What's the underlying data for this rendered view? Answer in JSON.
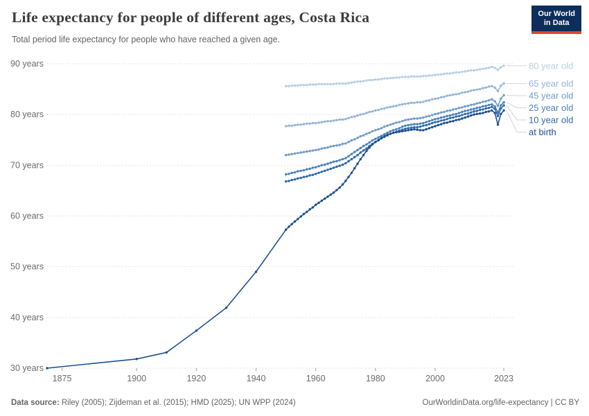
{
  "header": {
    "title": "Life expectancy for people of different ages, Costa Rica",
    "subtitle": "Total period life expectancy for people who have reached a given age."
  },
  "logo": {
    "line1": "Our World",
    "line2": "in Data"
  },
  "footer": {
    "data_source_label": "Data source:",
    "data_source": "Riley (2005); Zijdeman et al. (2015); HMD (2025); UN WPP (2024)",
    "credit": "OurWorldinData.org/life-expectancy | CC BY"
  },
  "colors": {
    "title_color": "#3c3c3c",
    "muted_color": "#636363",
    "grid_color": "#dadada",
    "tick_color": "#6b6b6b",
    "connector_color": "#c9c9c9",
    "logo_bg": "#0d2e5c",
    "logo_accent": "#e0432f"
  },
  "chart_data": {
    "type": "line",
    "title": "Life expectancy for people of different ages, Costa Rica",
    "subtitle": "Total period life expectancy for people who have reached a given age.",
    "xlabel": "",
    "ylabel": "",
    "xlim": [
      1870,
      2026
    ],
    "ylim": [
      30,
      90
    ],
    "grid": "horizontal-dashed",
    "legend_position": "right-edge-labels",
    "yticks": [
      {
        "value": 30,
        "label": "30 years"
      },
      {
        "value": 40,
        "label": "40 years"
      },
      {
        "value": 50,
        "label": "50 years"
      },
      {
        "value": 60,
        "label": "60 years"
      },
      {
        "value": 70,
        "label": "70 years"
      },
      {
        "value": 80,
        "label": "80 years"
      },
      {
        "value": 90,
        "label": "90 years"
      }
    ],
    "xticks": [
      {
        "value": 1875,
        "label": "1875"
      },
      {
        "value": 1900,
        "label": "1900"
      },
      {
        "value": 1920,
        "label": "1920"
      },
      {
        "value": 1940,
        "label": "1940"
      },
      {
        "value": 1960,
        "label": "1960"
      },
      {
        "value": 1980,
        "label": "1980"
      },
      {
        "value": 2000,
        "label": "2000"
      },
      {
        "value": 2023,
        "label": "2023"
      }
    ],
    "series": [
      {
        "name": "80 year old",
        "color": "#b7cfe3",
        "annual_start": 1950,
        "values": [
          85.6,
          85.6,
          85.7,
          85.7,
          85.7,
          85.8,
          85.8,
          85.8,
          85.9,
          85.9,
          85.9,
          86.0,
          86.0,
          86.0,
          86.0,
          86.0,
          86.0,
          86.1,
          86.1,
          86.1,
          86.1,
          86.2,
          86.3,
          86.4,
          86.5,
          86.5,
          86.6,
          86.7,
          86.8,
          86.8,
          86.9,
          86.9,
          87.0,
          87.1,
          87.1,
          87.2,
          87.2,
          87.3,
          87.3,
          87.4,
          87.4,
          87.4,
          87.5,
          87.5,
          87.5,
          87.5,
          87.6,
          87.6,
          87.7,
          87.7,
          87.8,
          87.9,
          87.9,
          88.0,
          88.1,
          88.1,
          88.2,
          88.3,
          88.3,
          88.4,
          88.5,
          88.6,
          88.7,
          88.7,
          88.8,
          88.9,
          89.0,
          89.1,
          89.2,
          89.4,
          89.2,
          88.8,
          89.3,
          89.6
        ]
      },
      {
        "name": "65 year old",
        "color": "#93b6d6",
        "annual_start": 1950,
        "values": [
          77.7,
          77.8,
          77.8,
          77.9,
          78.0,
          78.0,
          78.1,
          78.2,
          78.2,
          78.3,
          78.3,
          78.4,
          78.5,
          78.6,
          78.7,
          78.7,
          78.8,
          78.9,
          79.0,
          79.0,
          79.1,
          79.3,
          79.5,
          79.6,
          79.8,
          80.0,
          80.1,
          80.3,
          80.5,
          80.6,
          80.8,
          80.9,
          81.1,
          81.2,
          81.4,
          81.5,
          81.6,
          81.7,
          81.9,
          82.0,
          82.1,
          82.2,
          82.3,
          82.3,
          82.4,
          82.4,
          82.5,
          82.7,
          82.8,
          83.0,
          83.1,
          83.2,
          83.4,
          83.5,
          83.7,
          83.8,
          83.9,
          84.0,
          84.1,
          84.3,
          84.4,
          84.5,
          84.7,
          84.8,
          84.9,
          85.0,
          85.2,
          85.3,
          85.5,
          85.6,
          85.3,
          84.6,
          85.7,
          86.1
        ]
      },
      {
        "name": "45 year old",
        "color": "#6f9cc8",
        "annual_start": 1950,
        "values": [
          72.0,
          72.1,
          72.2,
          72.3,
          72.4,
          72.5,
          72.6,
          72.7,
          72.8,
          72.9,
          73.0,
          73.1,
          73.3,
          73.4,
          73.5,
          73.7,
          73.8,
          73.9,
          74.0,
          74.2,
          74.3,
          74.6,
          74.9,
          75.1,
          75.4,
          75.7,
          75.9,
          76.2,
          76.4,
          76.7,
          76.9,
          77.1,
          77.3,
          77.6,
          77.8,
          78.0,
          78.2,
          78.4,
          78.5,
          78.7,
          78.9,
          79.0,
          79.1,
          79.2,
          79.2,
          79.3,
          79.4,
          79.6,
          79.7,
          79.9,
          80.1,
          80.2,
          80.4,
          80.5,
          80.7,
          80.8,
          81.0,
          81.1,
          81.3,
          81.4,
          81.6,
          81.7,
          81.9,
          82.0,
          82.2,
          82.3,
          82.5,
          82.6,
          82.8,
          83.0,
          82.6,
          81.7,
          83.1,
          83.8
        ]
      },
      {
        "name": "25 year old",
        "color": "#4c81b8",
        "annual_start": 1950,
        "values": [
          68.2,
          68.3,
          68.5,
          68.6,
          68.8,
          68.9,
          69.0,
          69.2,
          69.3,
          69.5,
          69.6,
          69.8,
          70.0,
          70.1,
          70.3,
          70.5,
          70.7,
          70.8,
          71.0,
          71.2,
          71.4,
          71.8,
          72.2,
          72.6,
          73.0,
          73.4,
          73.8,
          74.1,
          74.5,
          74.9,
          75.2,
          75.5,
          75.8,
          76.1,
          76.4,
          76.7,
          76.9,
          77.1,
          77.3,
          77.6,
          77.8,
          77.9,
          78.0,
          78.1,
          78.1,
          78.2,
          78.3,
          78.5,
          78.7,
          78.9,
          79.1,
          79.2,
          79.4,
          79.5,
          79.7,
          79.8,
          80.0,
          80.1,
          80.3,
          80.5,
          80.7,
          80.8,
          81.0,
          81.1,
          81.3,
          81.4,
          81.6,
          81.7,
          81.9,
          82.0,
          81.6,
          80.4,
          81.8,
          82.4
        ]
      },
      {
        "name": "10 year old",
        "color": "#3069a9",
        "annual_start": 1950,
        "values": [
          66.8,
          66.9,
          67.1,
          67.2,
          67.4,
          67.5,
          67.7,
          67.8,
          68.0,
          68.1,
          68.3,
          68.5,
          68.7,
          68.9,
          69.1,
          69.3,
          69.5,
          69.7,
          69.9,
          70.1,
          70.4,
          70.8,
          71.2,
          71.6,
          72.0,
          72.5,
          72.9,
          73.3,
          73.8,
          74.2,
          74.6,
          74.9,
          75.3,
          75.6,
          75.9,
          76.2,
          76.4,
          76.6,
          76.8,
          77.0,
          77.2,
          77.3,
          77.4,
          77.5,
          77.5,
          77.6,
          77.8,
          77.9,
          78.1,
          78.3,
          78.5,
          78.6,
          78.8,
          78.9,
          79.1,
          79.3,
          79.4,
          79.6,
          79.7,
          79.9,
          80.1,
          80.2,
          80.4,
          80.6,
          80.7,
          80.9,
          81.0,
          81.2,
          81.3,
          81.5,
          81.1,
          79.7,
          81.2,
          81.8
        ]
      },
      {
        "name": "at birth",
        "color": "#1d4f91",
        "early_points": [
          [
            1870,
            30.0
          ],
          [
            1900,
            31.8
          ],
          [
            1910,
            33.1
          ],
          [
            1920,
            37.4
          ],
          [
            1930,
            41.9
          ],
          [
            1940,
            49.0
          ]
        ],
        "annual_start": 1950,
        "values": [
          57.3,
          57.9,
          58.4,
          58.9,
          59.4,
          59.9,
          60.4,
          60.8,
          61.3,
          61.7,
          62.2,
          62.6,
          63.0,
          63.4,
          63.8,
          64.2,
          64.6,
          65.1,
          65.6,
          66.2,
          66.9,
          67.7,
          68.5,
          69.4,
          70.3,
          71.2,
          72.0,
          72.8,
          73.5,
          74.1,
          74.6,
          75.0,
          75.4,
          75.7,
          76.0,
          76.2,
          76.4,
          76.5,
          76.6,
          76.7,
          76.8,
          76.9,
          77.0,
          77.1,
          77.0,
          76.9,
          76.9,
          77.1,
          77.3,
          77.5,
          77.7,
          77.9,
          78.1,
          78.3,
          78.4,
          78.6,
          78.7,
          78.9,
          79.0,
          79.2,
          79.4,
          79.6,
          79.8,
          80.0,
          80.1,
          80.2,
          80.3,
          80.5,
          80.6,
          80.8,
          80.3,
          78.0,
          80.1,
          80.8
        ]
      }
    ]
  }
}
